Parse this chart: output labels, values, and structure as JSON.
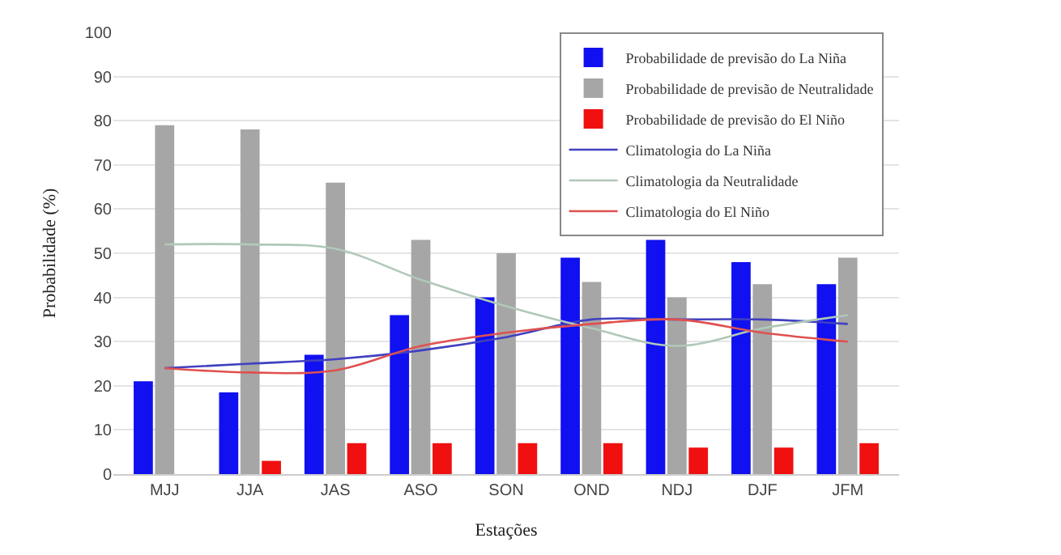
{
  "chart_data": {
    "type": "bar",
    "xlabel": "Estações",
    "ylabel": "Probabilidade (%)",
    "categories": [
      "MJJ",
      "JJA",
      "JAS",
      "ASO",
      "SON",
      "OND",
      "NDJ",
      "DJF",
      "JFM"
    ],
    "series": [
      {
        "name": "Probabilidade de previsão do La Niña",
        "color": "#1010f0",
        "values": [
          21,
          18.5,
          27,
          36,
          40,
          49,
          53,
          48,
          43
        ]
      },
      {
        "name": "Probabilidade de previsão de Neutralidade",
        "color": "#a6a6a6",
        "values": [
          79,
          78,
          66,
          53,
          50,
          43.5,
          40,
          43,
          49
        ]
      },
      {
        "name": "Probabilidade de previsão do El Niño",
        "color": "#f01010",
        "values": [
          null,
          3,
          7,
          7,
          7,
          7,
          6,
          6,
          7
        ]
      },
      {
        "name": "Climatologia do La Niña",
        "type": "line",
        "color": "#4040c0",
        "values": [
          24,
          25,
          26,
          28,
          31,
          35,
          35,
          35,
          34
        ]
      },
      {
        "name": "Climatologia da Neutralidade",
        "type": "line",
        "color": "#b0c8b8",
        "values": [
          52,
          52,
          51,
          44,
          38,
          33,
          29,
          33,
          36
        ]
      },
      {
        "name": "Climatologia do El Niño",
        "type": "line",
        "color": "#e05050",
        "values": [
          24,
          23,
          23.5,
          29,
          32,
          34,
          35,
          32,
          30
        ]
      }
    ],
    "ylim": [
      0,
      100
    ],
    "yticks": [
      0,
      10,
      20,
      30,
      40,
      50,
      60,
      70,
      80,
      90,
      100
    ],
    "grid": "y",
    "legend": "top right"
  }
}
